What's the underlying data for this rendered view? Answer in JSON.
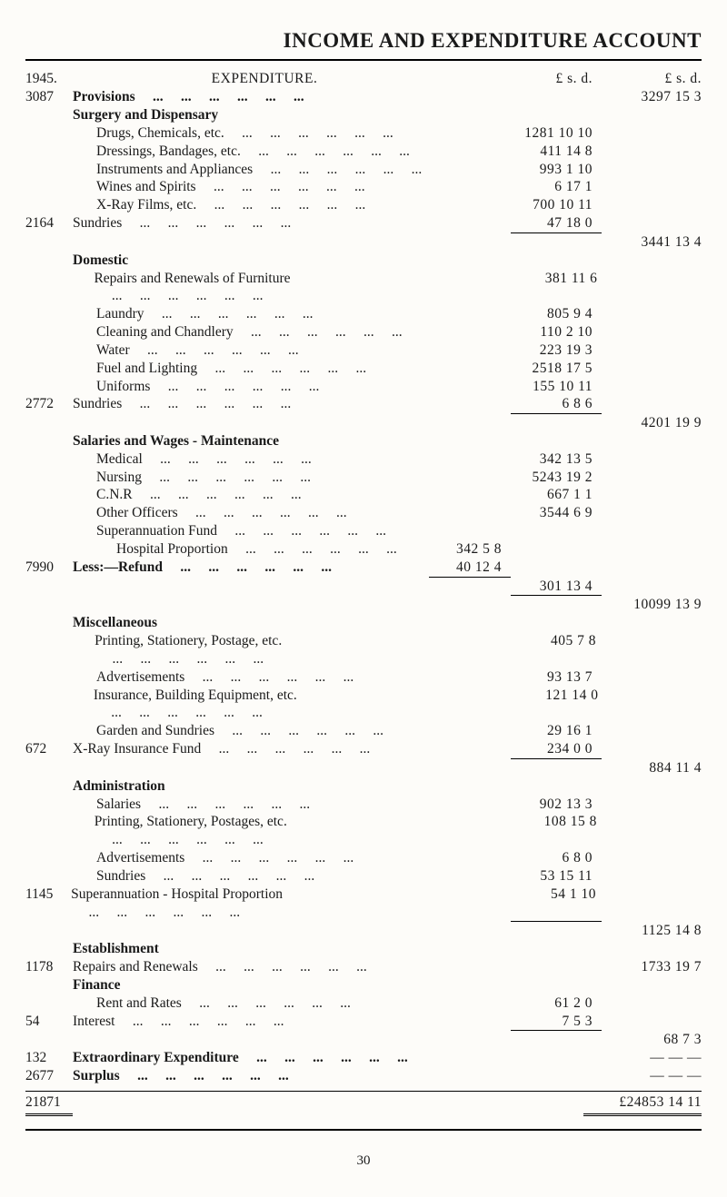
{
  "title": "INCOME AND EXPENDITURE ACCOUNT",
  "year": "1945.",
  "heading": "EXPENDITURE.",
  "col_heads": {
    "sub": "£  s.  d.",
    "tot": "£   s.  d."
  },
  "sections": {
    "provisions": {
      "ref": "3087",
      "title": "Provisions",
      "total": "3297 15  3"
    },
    "surgery": {
      "title": "Surgery and Dispensary",
      "items": [
        {
          "desc": "Drugs, Chemicals, etc.",
          "sub": "1281 10 10"
        },
        {
          "desc": "Dressings, Bandages, etc.",
          "sub": "411 14  8"
        },
        {
          "desc": "Instruments and Appliances",
          "sub": "993  1 10"
        },
        {
          "desc": "Wines and Spirits",
          "sub": "6 17  1"
        },
        {
          "desc": "X-Ray Films, etc.",
          "sub": "700 10 11"
        },
        {
          "ref": "2164",
          "desc": "Sundries",
          "sub": "47 18  0"
        }
      ],
      "total": "3441 13  4"
    },
    "domestic": {
      "title": "Domestic",
      "items": [
        {
          "desc": "Repairs and Renewals of Furniture",
          "sub": "381 11  6"
        },
        {
          "desc": "Laundry",
          "sub": "805  9  4"
        },
        {
          "desc": "Cleaning and Chandlery",
          "sub": "110  2 10"
        },
        {
          "desc": "Water",
          "sub": "223 19  3"
        },
        {
          "desc": "Fuel and Lighting",
          "sub": "2518 17  5"
        },
        {
          "desc": "Uniforms",
          "sub": "155 10 11"
        },
        {
          "ref": "2772",
          "desc": "Sundries",
          "sub": "6  8  6"
        }
      ],
      "total": "4201 19  9"
    },
    "salaries": {
      "title": "Salaries and Wages  -  Maintenance",
      "items": [
        {
          "desc": "Medical",
          "sub": "342 13  5"
        },
        {
          "desc": "Nursing",
          "sub": "5243 19  2"
        },
        {
          "desc": "C.N.R",
          "sub": "667  1  1"
        },
        {
          "desc": "Other Officers",
          "sub": "3544  6  9"
        },
        {
          "desc": "Superannuation Fund"
        },
        {
          "desc": "Hospital Proportion",
          "indent": true,
          "mid": "342  5  8"
        },
        {
          "ref": "7990",
          "desc": "Less:—Refund",
          "bold": true,
          "mid": "40 12  4"
        }
      ],
      "carry": "301 13  4",
      "total": "10099 13  9"
    },
    "misc": {
      "title": "Miscellaneous",
      "items": [
        {
          "desc": "Printing, Stationery, Postage, etc.",
          "sub": "405  7  8"
        },
        {
          "desc": "Advertisements",
          "sub": "93 13  7"
        },
        {
          "desc": "Insurance, Building Equipment, etc.",
          "sub": "121 14  0"
        },
        {
          "desc": "Garden and Sundries",
          "sub": "29 16  1"
        },
        {
          "ref": "672",
          "desc": "X-Ray Insurance Fund",
          "sub": "234  0  0"
        }
      ],
      "total": "884 11  4"
    },
    "admin": {
      "title": "Administration",
      "items": [
        {
          "desc": "Salaries",
          "sub": "902 13  3"
        },
        {
          "desc": "Printing, Stationery, Postages, etc.",
          "sub": "108 15  8"
        },
        {
          "desc": "Advertisements",
          "sub": "6  8  0"
        },
        {
          "desc": "Sundries",
          "sub": "53 15 11"
        },
        {
          "ref": "1145",
          "desc": "Superannuation - Hospital Proportion",
          "sub": "54  1 10"
        }
      ],
      "total": "1125 14  8"
    },
    "estab": {
      "title": "Establishment",
      "items": [
        {
          "ref": "1178",
          "desc": "Repairs and Renewals",
          "tot": "1733 19  7"
        }
      ]
    },
    "finance": {
      "title": "Finance",
      "items": [
        {
          "desc": "Rent and Rates",
          "sub": "61  2  0"
        },
        {
          "ref": "54",
          "desc": "Interest",
          "sub": "7  5  3"
        }
      ],
      "total": "68  7  3"
    },
    "extra": {
      "ref": "132",
      "title": "Extraordinary Expenditure",
      "total": "—  —  —"
    },
    "surplus": {
      "ref": "2677",
      "title": "Surplus",
      "total": "—  —  —"
    }
  },
  "grand_ref": "21871",
  "grand_total": "£24853 14 11",
  "page_number": "30"
}
